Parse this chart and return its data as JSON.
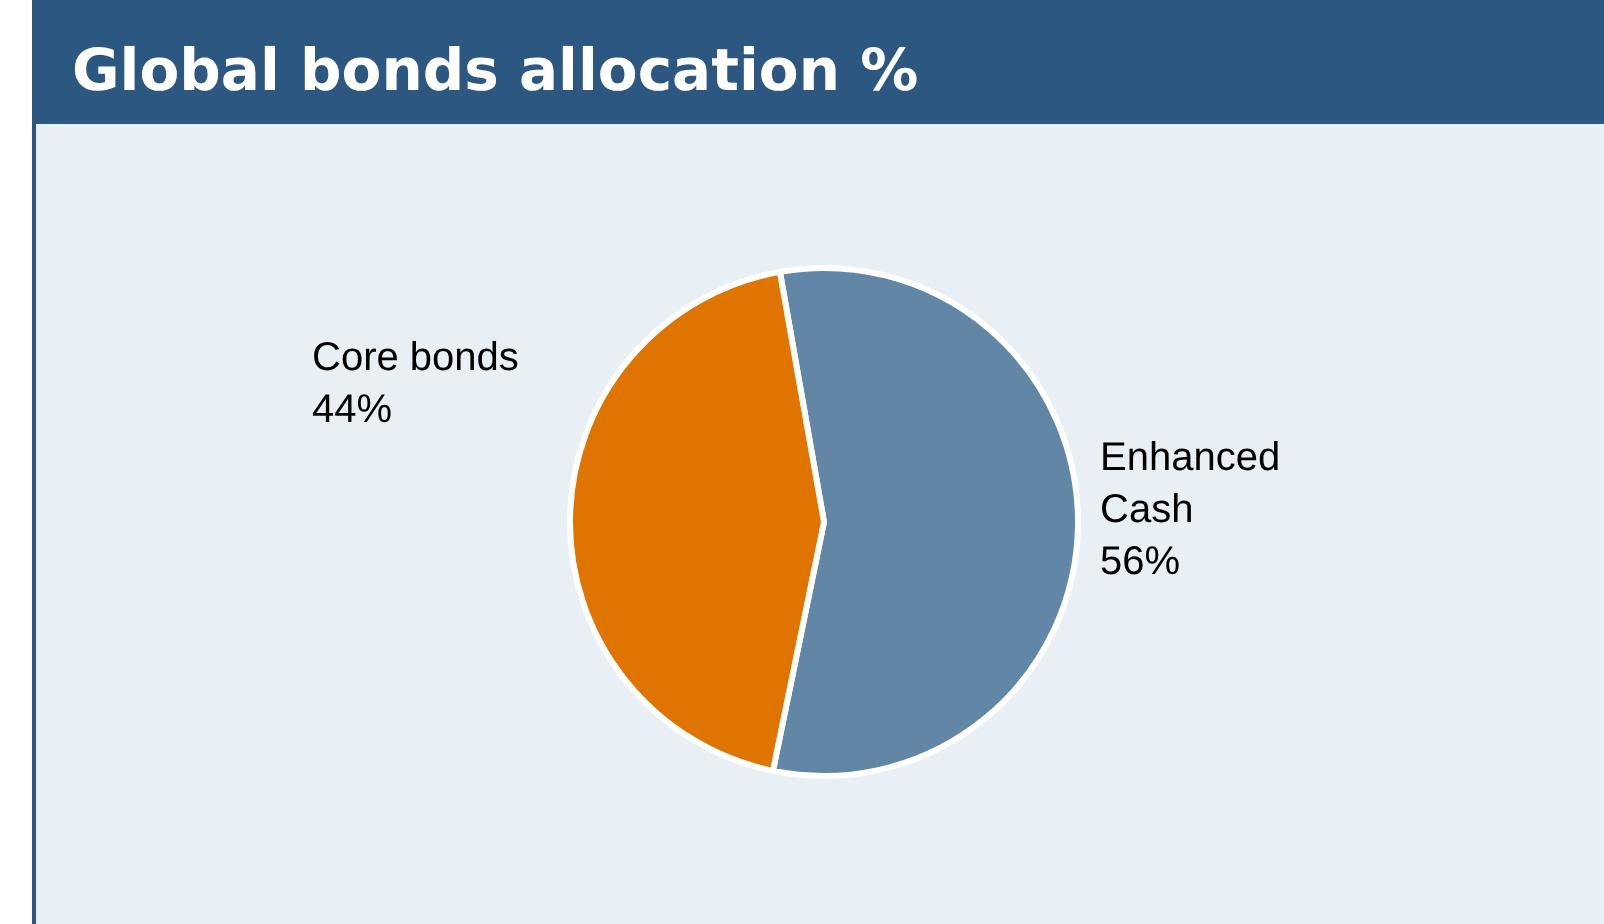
{
  "chart_data": {
    "type": "pie",
    "title": "Global bonds allocation %",
    "categories": [
      "Enhanced Cash",
      "Core bonds"
    ],
    "values": [
      56,
      44
    ],
    "colors": [
      "#6186a6",
      "#e07400"
    ],
    "value_labels": [
      "56%",
      "44%"
    ]
  }
}
